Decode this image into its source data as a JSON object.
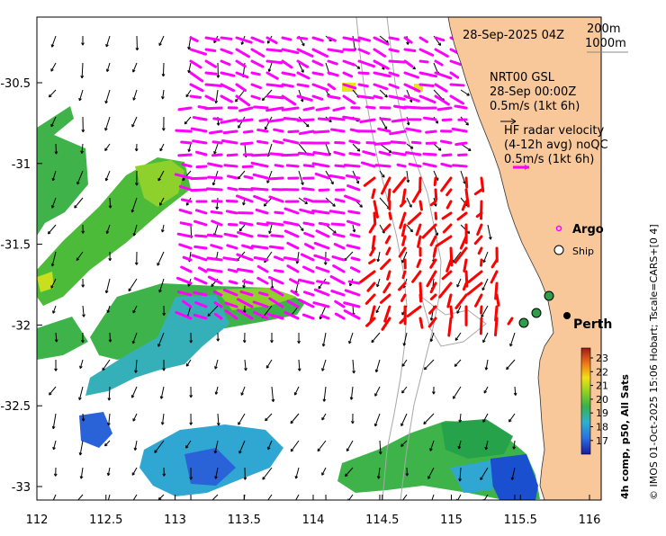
{
  "title_time": "28-Sep-2025 04Z",
  "bathymetry_legend": [
    "200m",
    "1000m"
  ],
  "model": {
    "name": "NRT00 GSL",
    "time": "28-Sep 00:00Z",
    "scale": "0.5m/s (1kt 6h)"
  },
  "radar": {
    "line1": "HF radar velocity",
    "line2": "(4-12h avg) noQC",
    "scale": "0.5m/s (1kt 6h)"
  },
  "legend": {
    "argo": "Argo",
    "ship": "Ship"
  },
  "place_labels": [
    "Perth"
  ],
  "colorbar": {
    "ticks": [
      "23",
      "22",
      "21",
      "20",
      "19",
      "18",
      "17"
    ],
    "label": "4h comp, p50, All Sats"
  },
  "credit": "© IMOS 01-Oct-2025 15:06 Hobart; Tscale=CARS+[0 4]",
  "axes": {
    "x_ticks": [
      "112",
      "112.5",
      "113",
      "113.5",
      "114",
      "114.5",
      "115",
      "115.5",
      "116"
    ],
    "y_ticks": [
      "-30.5",
      "-31",
      "-31.5",
      "-32",
      "-32.5",
      "-33"
    ],
    "xlim": [
      112,
      116.1
    ],
    "ylim": [
      -33.1,
      -30.0
    ]
  },
  "colors": {
    "land": "#f8c89a",
    "model_arrows": "#000000",
    "radar_arrows": "#ff00ff",
    "radar_arrows_nearshore": "#ff0000",
    "argo_marker": "#ff00ff",
    "ship_marker": "#ffffff",
    "moorings": "#2e9e4a",
    "bathymetry": "#a0a0a0"
  }
}
